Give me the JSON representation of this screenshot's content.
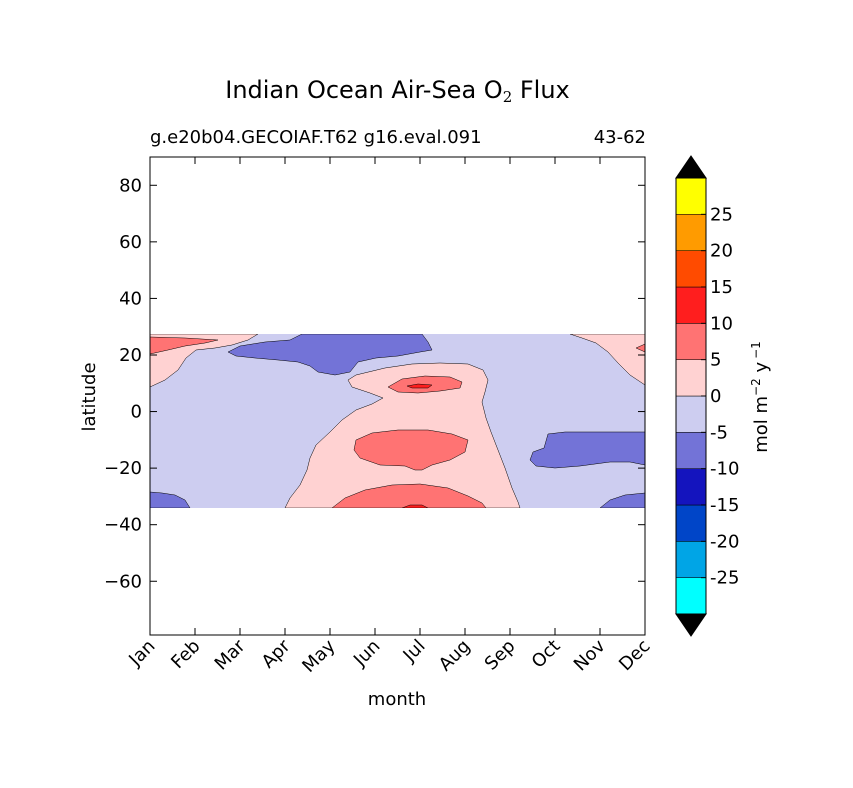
{
  "figure": {
    "title_main": "Indian Ocean Air-Sea O",
    "title_sub": "2",
    "title_tail": " Flux",
    "subtitle_left": "g.e20b04.GECOIAF.T62 g16.eval.091",
    "subtitle_right": "43-62"
  },
  "chart_data": {
    "type": "heatmap",
    "title": "Indian Ocean Air-Sea O2 Flux",
    "subtitle_left": "g.e20b04.GECOIAF.T62 g16.eval.091",
    "subtitle_right": "43-62",
    "xlabel": "month",
    "ylabel": "latitude",
    "x_categories": [
      "Jan",
      "Feb",
      "Mar",
      "Apr",
      "May",
      "Jun",
      "Jul",
      "Aug",
      "Sep",
      "Oct",
      "Nov",
      "Dec"
    ],
    "y_ticks": [
      80,
      60,
      40,
      20,
      0,
      -20,
      -40,
      -60
    ],
    "y_tick_labels": [
      "80",
      "60",
      "40",
      "20",
      "0",
      "−20",
      "−40",
      "−60"
    ],
    "ylim": [
      -79,
      90
    ],
    "data_lat_range": [
      -34,
      27
    ],
    "colorbar": {
      "label_base": "mol m",
      "label_exp1": "−2",
      "label_mid": " y",
      "label_exp2": "−1",
      "levels": [
        -30,
        -25,
        -20,
        -15,
        -10,
        -5,
        0,
        5,
        10,
        15,
        20,
        25,
        30
      ],
      "tick_values": [
        -25,
        -20,
        -15,
        -10,
        -5,
        0,
        5,
        10,
        15,
        20,
        25
      ],
      "tick_labels": [
        "-25",
        "-20",
        "-15",
        "-10",
        "-5",
        "0",
        "5",
        "10",
        "15",
        "20",
        "25"
      ],
      "colors": [
        "#00ffff",
        "#00a5e6",
        "#0045c8",
        "#1414be",
        "#7373d7",
        "#cdcdf0",
        "#ffd2d2",
        "#ff7373",
        "#ff1e1e",
        "#ff4b00",
        "#ff9b00",
        "#ffff00"
      ],
      "extend_colors": {
        "min": "#000000",
        "max": "#000000"
      }
    },
    "regions": [
      {
        "name": "background",
        "level_range": [
          -5,
          0
        ],
        "color": "#cdcdf0",
        "month_range": [
          "Jan",
          "Dec"
        ],
        "lat_range": [
          -34,
          27
        ]
      },
      {
        "name": "northern positive band Jan",
        "level_range": [
          0,
          5
        ],
        "color": "#ffd2d2",
        "month_range": [
          "Jan",
          "Feb"
        ],
        "lat_range": [
          8,
          27
        ]
      },
      {
        "name": "northern maximum Jan",
        "level_range": [
          5,
          10
        ],
        "color": "#ff7373",
        "month_range": [
          "Jan",
          "Feb"
        ],
        "lat_range": [
          20,
          26
        ]
      },
      {
        "name": "northern negative band May",
        "level_range": [
          -10,
          -5
        ],
        "color": "#7373d7",
        "month_range": [
          "Mar",
          "Jul"
        ],
        "lat_range": [
          13,
          27
        ]
      },
      {
        "name": "equatorial positive tongue Jul",
        "level_range": [
          0,
          5
        ],
        "color": "#ffd2d2",
        "month_range": [
          "May",
          "Sep"
        ],
        "lat_range": [
          -34,
          15
        ]
      },
      {
        "name": "July maximum 8N",
        "level_range": [
          5,
          10
        ],
        "color": "#ff7373",
        "month_range": [
          "Jul",
          "Aug"
        ],
        "lat_range": [
          6,
          12
        ]
      },
      {
        "name": "July peak 8N",
        "level_range": [
          10,
          15
        ],
        "color": "#ff1e1e",
        "month_range": [
          "Jul",
          "Jul"
        ],
        "lat_range": [
          8,
          9
        ]
      },
      {
        "name": "July maximum 20S",
        "level_range": [
          5,
          10
        ],
        "color": "#ff7373",
        "month_range": [
          "Jun",
          "Aug"
        ],
        "lat_range": [
          -23,
          -7
        ]
      },
      {
        "name": "southern maximum Jul",
        "level_range": [
          5,
          10
        ],
        "color": "#ff7373",
        "month_range": [
          "May",
          "Aug"
        ],
        "lat_range": [
          -34,
          -26
        ]
      },
      {
        "name": "southern negative Oct-Dec",
        "level_range": [
          -10,
          -5
        ],
        "color": "#7373d7",
        "month_range": [
          "Oct",
          "Dec"
        ],
        "lat_range": [
          -20,
          -7
        ]
      },
      {
        "name": "southern negative Jan",
        "level_range": [
          -10,
          -5
        ],
        "color": "#7373d7",
        "month_range": [
          "Jan",
          "Feb"
        ],
        "lat_range": [
          -34,
          -29
        ]
      },
      {
        "name": "southern negative Dec",
        "level_range": [
          -10,
          -5
        ],
        "color": "#7373d7",
        "month_range": [
          "Nov",
          "Dec"
        ],
        "lat_range": [
          -34,
          -29
        ]
      },
      {
        "name": "northern positive Dec",
        "level_range": [
          0,
          5
        ],
        "color": "#ffd2d2",
        "month_range": [
          "Nov",
          "Dec"
        ],
        "lat_range": [
          15,
          27
        ]
      }
    ]
  }
}
